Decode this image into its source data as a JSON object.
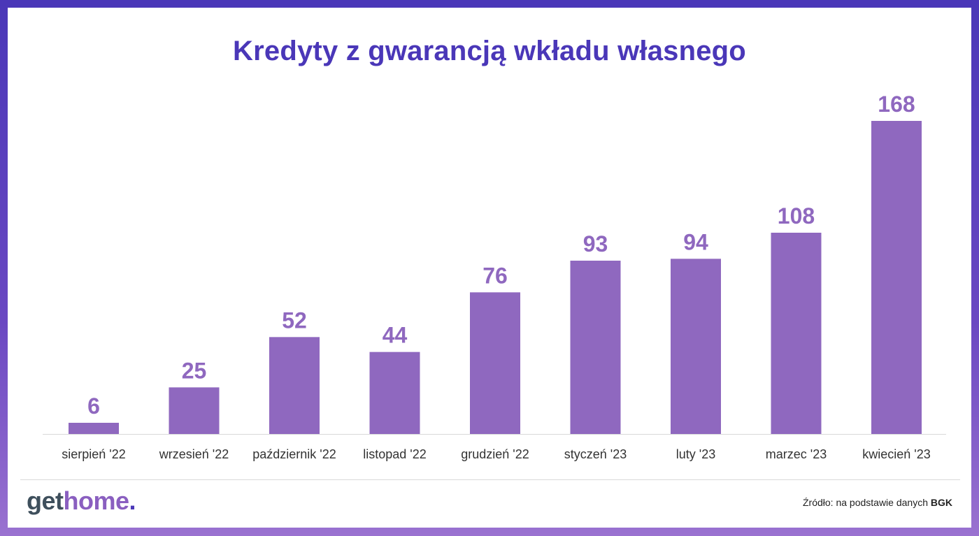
{
  "chart_data": {
    "type": "bar",
    "title": "Kredyty z gwarancją wkładu własnego",
    "categories": [
      "sierpień '22",
      "wrzesień '22",
      "październik '22",
      "listopad '22",
      "grudzień '22",
      "styczeń '23",
      "luty '23",
      "marzec '23",
      "kwiecień '23"
    ],
    "values": [
      6,
      25,
      52,
      44,
      76,
      93,
      94,
      108,
      168
    ],
    "ylim": [
      0,
      168
    ],
    "data_labels": true,
    "grid": false,
    "bar_color": "#8f68bf",
    "label_color": "#8f68bf"
  },
  "footer": {
    "logo_get": "get",
    "logo_home": "home",
    "logo_dot": ".",
    "source_label": "Źródło: na podstawie danych",
    "source_name": "BGK"
  },
  "colors": {
    "title": "#4a37b8",
    "frame": "#4a37b8"
  }
}
